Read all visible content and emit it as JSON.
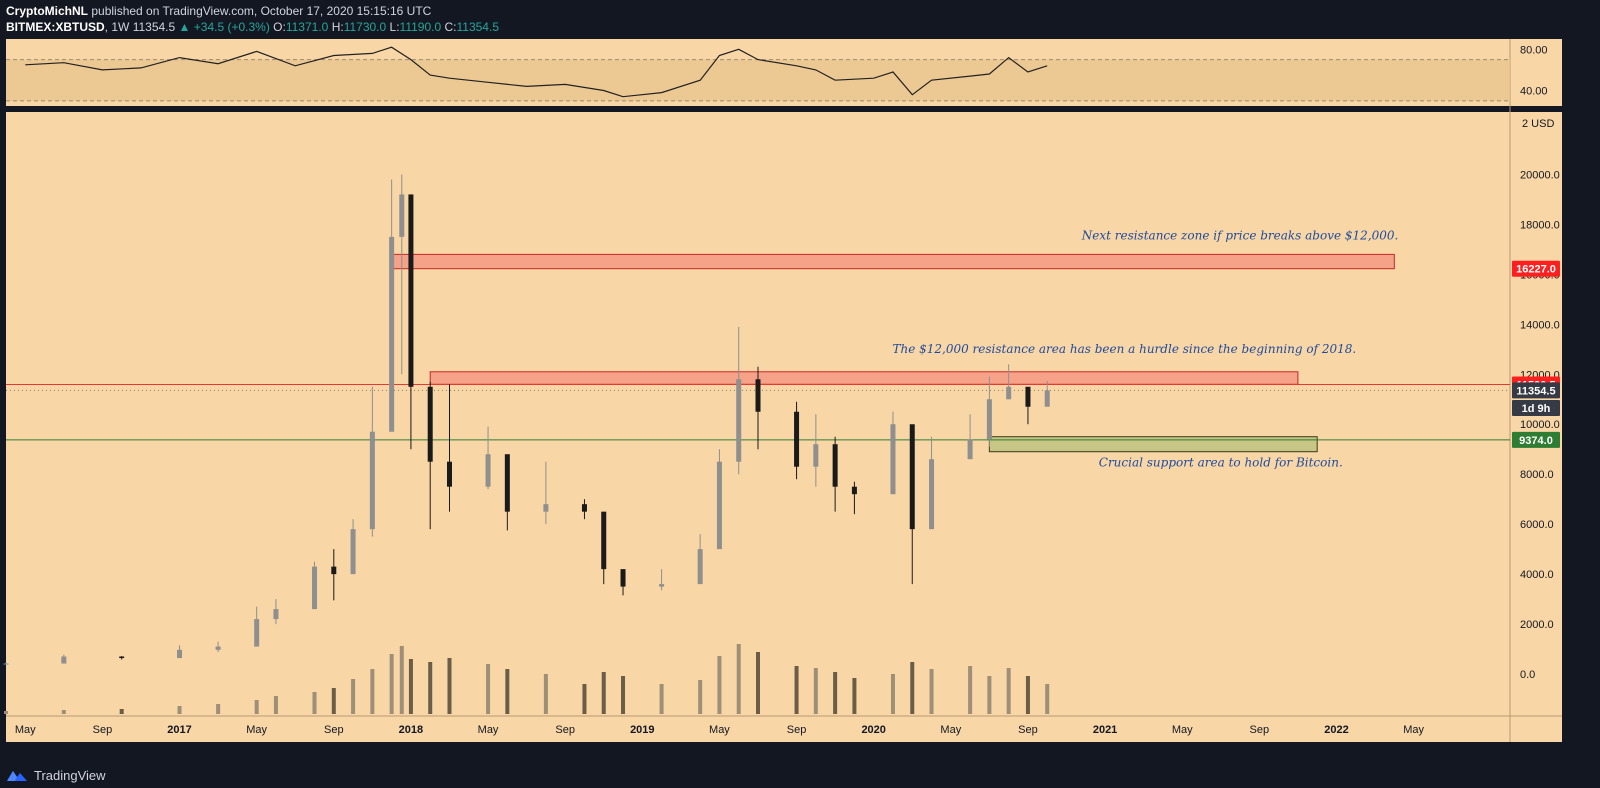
{
  "header": {
    "author": "CryptoMichNL",
    "published_text": "published on TradingView.com, October 17, 2020 15:15:16 UTC",
    "symbol": "BITMEX:XBTUSD",
    "interval": "1W",
    "last": "11354.5",
    "change": "+34.5 (+0.3%)",
    "open_label": "O:",
    "open": "11371.0",
    "high_label": "H:",
    "high": "11730.0",
    "low_label": "L:",
    "low": "11190.0",
    "close_label": "C:",
    "close": "11354.5"
  },
  "footer": {
    "brand": "TradingView",
    "logo_icon": "tradingview-logo-icon"
  },
  "colors": {
    "background": "#f8d6a6",
    "up_candle": "#8f8f8f",
    "down_candle": "#1a1a1a",
    "resistance_zone": "#f6a289",
    "support_zone": "#c7c684",
    "resistance_tag": "#ff1f1f",
    "support_tag": "#2e7d32",
    "annotation_text": "#1e4b9e"
  },
  "chart_data": [
    {
      "type": "line",
      "name": "RSI",
      "y_ticks": [
        "80.00",
        "40.00"
      ],
      "ylim": [
        25,
        90
      ],
      "band": [
        30,
        70
      ],
      "x": [
        "2016-05",
        "2016-07",
        "2016-09",
        "2016-11",
        "2017-01",
        "2017-03",
        "2017-05",
        "2017-07",
        "2017-09",
        "2017-11",
        "2017-12",
        "2018-01",
        "2018-02",
        "2018-03",
        "2018-05",
        "2018-07",
        "2018-09",
        "2018-11",
        "2018-12",
        "2019-02",
        "2019-04",
        "2019-05",
        "2019-06",
        "2019-07",
        "2019-09",
        "2019-10",
        "2019-11",
        "2020-01",
        "2020-02",
        "2020-03",
        "2020-04",
        "2020-06",
        "2020-07",
        "2020-08",
        "2020-09",
        "2020-10"
      ],
      "values": [
        65,
        67,
        60,
        62,
        72,
        66,
        78,
        64,
        74,
        76,
        82,
        70,
        55,
        52,
        48,
        44,
        46,
        40,
        34,
        38,
        50,
        74,
        80,
        70,
        64,
        60,
        50,
        52,
        58,
        36,
        50,
        54,
        56,
        72,
        58,
        64
      ]
    },
    {
      "type": "candlestick",
      "name": "BITMEX:XBTUSD",
      "interval": "1W",
      "x_ticks": [
        "May",
        "Sep",
        "2017",
        "May",
        "Sep",
        "2018",
        "May",
        "Sep",
        "2019",
        "May",
        "Sep",
        "2020",
        "May",
        "Sep",
        "2021",
        "May",
        "Sep",
        "2022",
        "May"
      ],
      "y_ticks": [
        "20000.0",
        "18000.0",
        "16000.0",
        "14000.0",
        "12000.0",
        "10000.0",
        "8000.0",
        "6000.0",
        "4000.0",
        "2000.0",
        "0.0"
      ],
      "y_unit": "USD",
      "ylim": [
        -1600,
        22500
      ],
      "price_series": {
        "dates": [
          "2016-04",
          "2016-07",
          "2016-10",
          "2017-01",
          "2017-03",
          "2017-05",
          "2017-06",
          "2017-08",
          "2017-09",
          "2017-10",
          "2017-11",
          "2017-12",
          "2017-12-17",
          "2018-01",
          "2018-02",
          "2018-03",
          "2018-05",
          "2018-06",
          "2018-08",
          "2018-10",
          "2018-11",
          "2018-12",
          "2019-02",
          "2019-04",
          "2019-05",
          "2019-06",
          "2019-07",
          "2019-09",
          "2019-10",
          "2019-11",
          "2019-12",
          "2020-02",
          "2020-03",
          "2020-04",
          "2020-06",
          "2020-07",
          "2020-08",
          "2020-09",
          "2020-10"
        ],
        "close": [
          420,
          700,
          640,
          970,
          1100,
          2200,
          2600,
          4300,
          4000,
          5800,
          9700,
          17500,
          19200,
          11500,
          8500,
          7500,
          8800,
          6500,
          6800,
          6500,
          4200,
          3500,
          3600,
          5000,
          8500,
          11800,
          10500,
          8300,
          9200,
          7500,
          7200,
          10000,
          5800,
          8600,
          9400,
          11000,
          11500,
          10700,
          11354.5
        ],
        "high": [
          450,
          780,
          720,
          1150,
          1300,
          2700,
          3000,
          4500,
          5000,
          6200,
          11500,
          19800,
          20000,
          17200,
          11700,
          11600,
          9900,
          7800,
          8500,
          7000,
          6400,
          4100,
          4200,
          5600,
          9000,
          13900,
          12300,
          10900,
          10400,
          9500,
          7700,
          10500,
          8000,
          9500,
          10400,
          11900,
          12400,
          11000,
          11730
        ],
        "low": [
          380,
          620,
          580,
          780,
          880,
          1500,
          2000,
          2600,
          2950,
          4100,
          5500,
          10500,
          12000,
          9000,
          5800,
          6500,
          7400,
          5750,
          6000,
          6200,
          3600,
          3150,
          3350,
          3900,
          5700,
          8000,
          9000,
          7800,
          7500,
          6500,
          6400,
          8600,
          3600,
          6700,
          8900,
          9100,
          11000,
          10000,
          11190
        ]
      },
      "volume_series": {
        "values": [
          3,
          4,
          5,
          8,
          10,
          14,
          18,
          22,
          26,
          35,
          45,
          60,
          68,
          55,
          52,
          56,
          50,
          45,
          40,
          30,
          42,
          38,
          30,
          34,
          58,
          70,
          62,
          48,
          46,
          42,
          36,
          40,
          52,
          45,
          48,
          38,
          46,
          38,
          30
        ]
      },
      "horizontal_lines": [
        {
          "price": 11590.5,
          "label": "11590.5",
          "kind": "resistance"
        },
        {
          "price": 9374.0,
          "label": "9374.0",
          "kind": "support"
        }
      ],
      "zones": [
        {
          "kind": "resistance",
          "from": "2017-12",
          "to": "2022-04",
          "low": 16227.0,
          "high": 16800
        },
        {
          "kind": "resistance",
          "from": "2018-02",
          "to": "2021-11",
          "low": 11600,
          "high": 12100
        },
        {
          "kind": "support",
          "from": "2020-07",
          "to": "2021-12",
          "low": 8900,
          "high": 9500
        }
      ],
      "price_tags": [
        {
          "label": "16227.0",
          "price": 16227.0,
          "color": "#ff1f1f"
        },
        {
          "label": "11590.5",
          "price": 11590.5,
          "color": "#ff1f1f"
        },
        {
          "label": "11354.5",
          "price": 11354.5,
          "color": "#363a45"
        },
        {
          "label": "1d 9h",
          "price": 10650,
          "color": "#363a45"
        },
        {
          "label": "9374.0",
          "price": 9374.0,
          "color": "#2e7d32"
        }
      ],
      "annotations": [
        {
          "text": "Next resistance zone if price breaks above $12,000.",
          "price": 17400,
          "date": "2021-08"
        },
        {
          "text": "The $12,000 resistance area has been a hurdle since the beginning of 2018.",
          "price": 12850,
          "date": "2021-02"
        },
        {
          "text": "Crucial support area to hold for Bitcoin.",
          "price": 8300,
          "date": "2021-07"
        }
      ],
      "grid": false,
      "legend": "none"
    }
  ]
}
